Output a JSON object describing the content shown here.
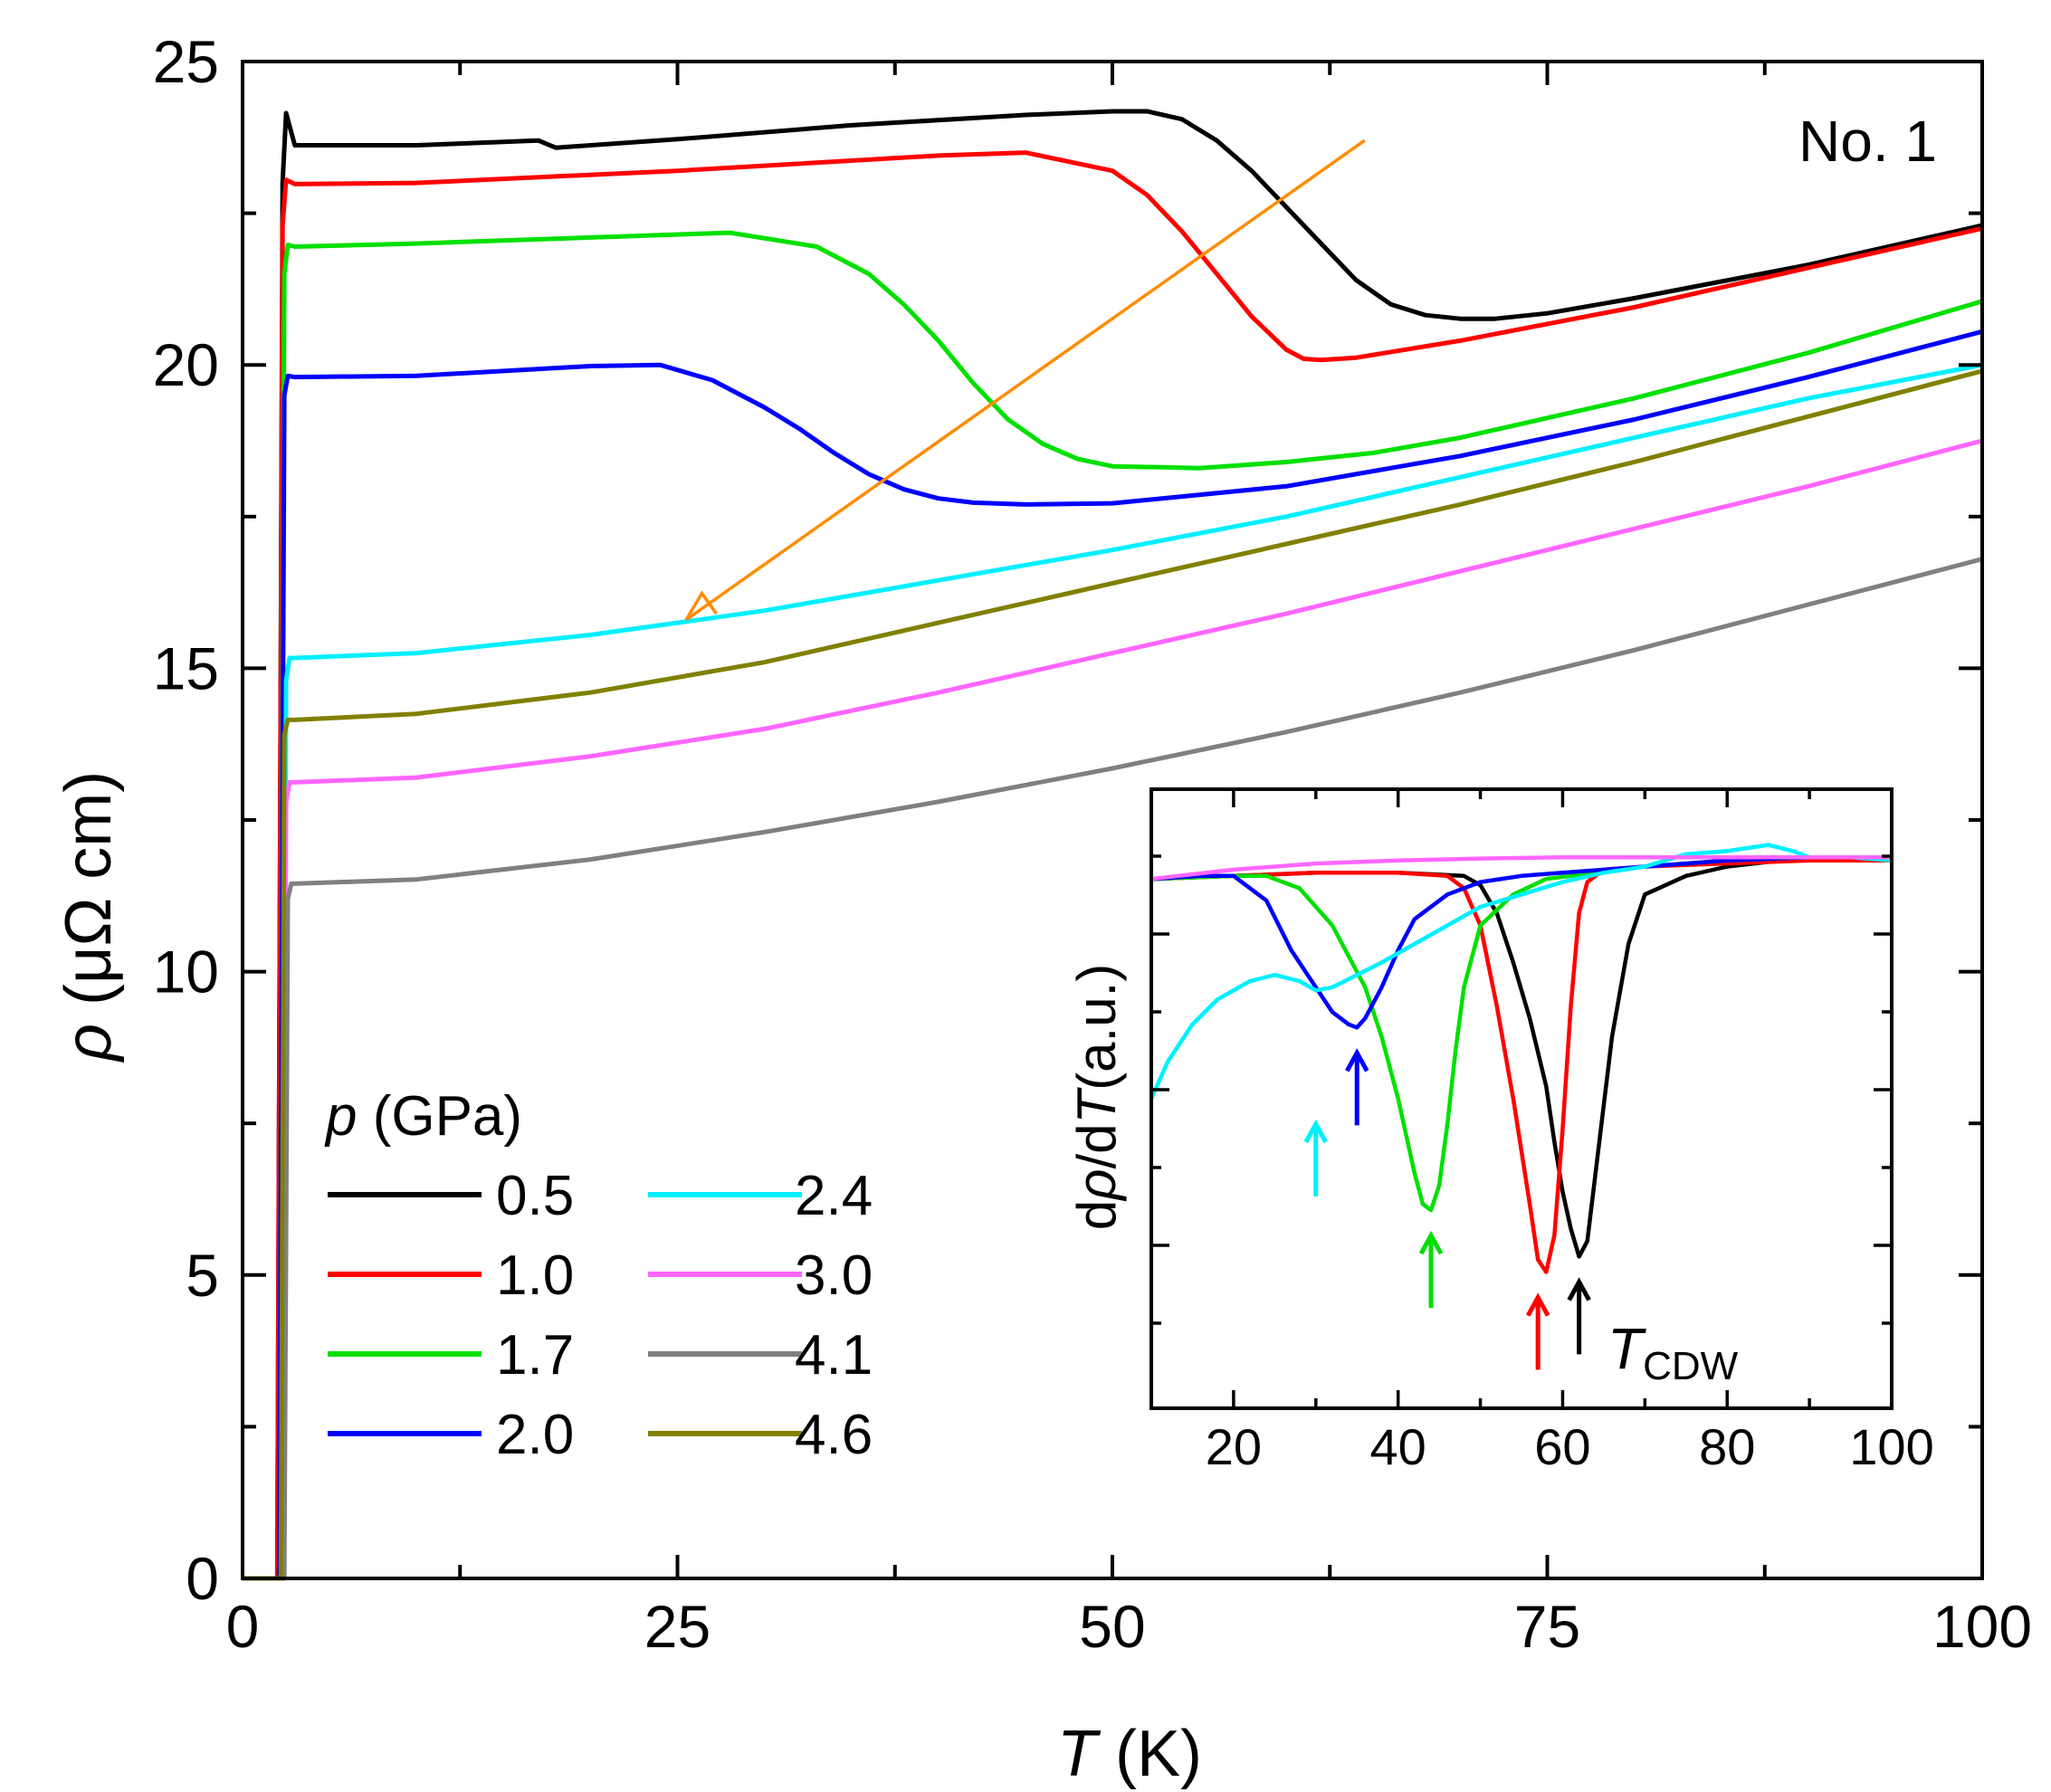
{
  "colors": {
    "black": "#000000",
    "red": "#ff0000",
    "green": "#00e000",
    "blue": "#0000ff",
    "cyan": "#00f0ff",
    "magenta": "#ff66ff",
    "gray": "#808080",
    "olive": "#808000",
    "orange": "#ff8c00"
  },
  "chart_data": [
    {
      "id": "main",
      "type": "line",
      "title": "",
      "annotation": "No. 1",
      "xlabel_symbol": "T",
      "xlabel_unit": " (K)",
      "ylabel_symbol": "ρ",
      "ylabel_unit": " (μΩ cm)",
      "xlim": [
        0,
        100
      ],
      "ylim": [
        0,
        25
      ],
      "xticks": [
        0,
        25,
        50,
        75,
        100
      ],
      "yticks": [
        0,
        5,
        10,
        15,
        20,
        25
      ],
      "legend_title_symbol": "p",
      "legend_title_unit": " (GPa)",
      "legend_placement": "lower-left",
      "series": [
        {
          "name": "0.5",
          "color": "black",
          "x": [
            0,
            2.0,
            2.3,
            2.5,
            3,
            10,
            17,
            18,
            25,
            35,
            45,
            50,
            52,
            54,
            56,
            58,
            60,
            62,
            64,
            66,
            68,
            70,
            72,
            75,
            80,
            90,
            100
          ],
          "y": [
            0,
            0,
            23.0,
            24.15,
            23.62,
            23.62,
            23.7,
            23.58,
            23.72,
            23.95,
            24.12,
            24.18,
            24.18,
            24.05,
            23.7,
            23.2,
            22.6,
            22.0,
            21.4,
            21.0,
            20.82,
            20.76,
            20.76,
            20.85,
            21.1,
            21.65,
            22.3
          ]
        },
        {
          "name": "1.0",
          "color": "red",
          "x": [
            0,
            2.0,
            2.3,
            2.5,
            3,
            10,
            25,
            40,
            45,
            50,
            52,
            54,
            56,
            58,
            60,
            61,
            62,
            64,
            70,
            80,
            90,
            100
          ],
          "y": [
            0,
            0,
            22.3,
            23.05,
            22.98,
            23.0,
            23.2,
            23.45,
            23.5,
            23.2,
            22.8,
            22.2,
            21.5,
            20.8,
            20.25,
            20.1,
            20.08,
            20.12,
            20.4,
            20.95,
            21.6,
            22.25
          ]
        },
        {
          "name": "1.7",
          "color": "green",
          "x": [
            0,
            2.1,
            2.4,
            2.6,
            3,
            10,
            20,
            28,
            33,
            36,
            38,
            40,
            42,
            44,
            46,
            48,
            50,
            55,
            60,
            65,
            70,
            80,
            90,
            100
          ],
          "y": [
            0,
            0,
            21.5,
            21.98,
            21.95,
            22.0,
            22.1,
            22.18,
            21.95,
            21.5,
            21.0,
            20.4,
            19.7,
            19.1,
            18.7,
            18.45,
            18.33,
            18.3,
            18.4,
            18.55,
            18.8,
            19.45,
            20.2,
            21.05
          ]
        },
        {
          "name": "2.0",
          "color": "blue",
          "x": [
            0,
            2.1,
            2.4,
            2.6,
            3,
            10,
            20,
            24,
            27,
            30,
            32,
            34,
            36,
            38,
            40,
            42,
            45,
            50,
            60,
            70,
            80,
            90,
            100
          ],
          "y": [
            0,
            0,
            19.5,
            19.82,
            19.8,
            19.82,
            19.98,
            20.0,
            19.75,
            19.3,
            18.95,
            18.55,
            18.2,
            17.95,
            17.8,
            17.73,
            17.7,
            17.72,
            18.0,
            18.5,
            19.1,
            19.8,
            20.55
          ]
        },
        {
          "name": "2.4",
          "color": "cyan",
          "x": [
            0,
            2.3,
            2.5,
            2.7,
            3,
            10,
            20,
            30,
            40,
            50,
            60,
            70,
            80,
            90,
            100
          ],
          "y": [
            0,
            0,
            14.8,
            15.17,
            15.17,
            15.25,
            15.55,
            15.95,
            16.45,
            16.95,
            17.5,
            18.15,
            18.8,
            19.45,
            20.0
          ]
        },
        {
          "name": "3.0",
          "color": "magenta",
          "x": [
            0,
            2.3,
            2.5,
            2.7,
            3,
            10,
            20,
            30,
            40,
            50,
            60,
            70,
            80,
            90,
            100
          ],
          "y": [
            0,
            0,
            12.8,
            13.12,
            13.12,
            13.2,
            13.55,
            14.0,
            14.6,
            15.25,
            15.9,
            16.6,
            17.3,
            18.0,
            18.75
          ]
        },
        {
          "name": "4.1",
          "color": "gray",
          "x": [
            0,
            2.4,
            2.6,
            2.8,
            3,
            10,
            20,
            30,
            40,
            50,
            60,
            70,
            80,
            90,
            100
          ],
          "y": [
            0,
            0,
            11.2,
            11.45,
            11.45,
            11.52,
            11.85,
            12.3,
            12.8,
            13.35,
            13.95,
            14.6,
            15.3,
            16.05,
            16.8
          ]
        },
        {
          "name": "4.6",
          "color": "olive",
          "x": [
            0,
            2.2,
            2.4,
            2.6,
            3,
            10,
            20,
            30,
            40,
            50,
            60,
            70,
            80,
            90,
            100
          ],
          "y": [
            0,
            0,
            13.9,
            14.15,
            14.15,
            14.25,
            14.6,
            15.1,
            15.75,
            16.4,
            17.05,
            17.7,
            18.4,
            19.15,
            19.9
          ]
        }
      ],
      "arrow": {
        "color": "orange",
        "from": [
          64.5,
          23.7
        ],
        "to": [
          25.5,
          15.8
        ]
      }
    },
    {
      "id": "inset",
      "type": "line",
      "xlabel": "",
      "ylabel_prefix": "d",
      "ylabel_rho": "ρ",
      "ylabel_mid": "/d",
      "ylabel_T": "T",
      "ylabel_unit": "(a.u.)",
      "xlim": [
        10,
        100
      ],
      "ylim": [
        0,
        1
      ],
      "xticks": [
        20,
        40,
        60,
        80,
        100
      ],
      "annotation_symbol": "T",
      "annotation_subscript": "CDW",
      "series": [
        {
          "name": "0.5",
          "color": "black",
          "x": [
            10,
            20,
            30,
            40,
            48,
            50,
            52,
            54,
            56,
            58,
            59,
            60,
            61,
            62,
            63,
            64,
            66,
            68,
            70,
            75,
            80,
            90,
            100
          ],
          "y": [
            0.855,
            0.86,
            0.865,
            0.865,
            0.86,
            0.845,
            0.8,
            0.72,
            0.63,
            0.52,
            0.43,
            0.35,
            0.29,
            0.245,
            0.27,
            0.38,
            0.6,
            0.75,
            0.83,
            0.86,
            0.875,
            0.89,
            0.89
          ]
        },
        {
          "name": "1.0",
          "color": "red",
          "x": [
            10,
            20,
            30,
            40,
            46,
            48,
            50,
            52,
            54,
            56,
            57,
            58,
            59,
            60,
            61,
            62,
            63,
            65,
            70,
            80,
            90,
            100
          ],
          "y": [
            0.855,
            0.86,
            0.865,
            0.865,
            0.86,
            0.84,
            0.78,
            0.65,
            0.5,
            0.33,
            0.24,
            0.22,
            0.28,
            0.45,
            0.65,
            0.8,
            0.85,
            0.87,
            0.875,
            0.88,
            0.885,
            0.885
          ]
        },
        {
          "name": "1.7",
          "color": "green",
          "x": [
            10,
            20,
            24,
            28,
            32,
            36,
            38,
            40,
            42,
            43,
            44,
            45,
            46,
            47,
            48,
            50,
            54,
            58,
            64,
            70,
            80,
            90,
            100
          ],
          "y": [
            0.855,
            0.86,
            0.86,
            0.84,
            0.78,
            0.68,
            0.6,
            0.5,
            0.38,
            0.33,
            0.32,
            0.36,
            0.46,
            0.58,
            0.68,
            0.78,
            0.83,
            0.855,
            0.865,
            0.875,
            0.885,
            0.89,
            0.89
          ]
        },
        {
          "name": "2.0",
          "color": "blue",
          "x": [
            10,
            16,
            20,
            24,
            27,
            30,
            32,
            34,
            35,
            36,
            38,
            40,
            42,
            46,
            50,
            55,
            60,
            70,
            80,
            90,
            100
          ],
          "y": [
            0.855,
            0.86,
            0.86,
            0.82,
            0.74,
            0.68,
            0.64,
            0.62,
            0.615,
            0.63,
            0.68,
            0.74,
            0.79,
            0.83,
            0.85,
            0.86,
            0.865,
            0.875,
            0.885,
            0.89,
            0.89
          ]
        },
        {
          "name": "2.4",
          "color": "cyan",
          "x": [
            10,
            12,
            15,
            18,
            22,
            25,
            28,
            30,
            32,
            35,
            38,
            42,
            46,
            50,
            55,
            60,
            65,
            70,
            75,
            80,
            85,
            88,
            90,
            95,
            100
          ],
          "y": [
            0.5,
            0.56,
            0.62,
            0.66,
            0.69,
            0.7,
            0.69,
            0.675,
            0.68,
            0.7,
            0.72,
            0.75,
            0.78,
            0.81,
            0.83,
            0.85,
            0.865,
            0.875,
            0.895,
            0.9,
            0.91,
            0.9,
            0.89,
            0.89,
            0.885
          ]
        },
        {
          "name": "3.0",
          "color": "magenta",
          "x": [
            10,
            20,
            30,
            40,
            50,
            60,
            70,
            80,
            90,
            100
          ],
          "y": [
            0.855,
            0.87,
            0.88,
            0.885,
            0.888,
            0.89,
            0.89,
            0.89,
            0.89,
            0.89
          ]
        }
      ],
      "arrows": [
        {
          "color": "cyan",
          "x": 30
        },
        {
          "color": "blue",
          "x": 35
        },
        {
          "color": "green",
          "x": 44
        },
        {
          "color": "red",
          "x": 57
        },
        {
          "color": "black",
          "x": 62
        }
      ]
    }
  ]
}
